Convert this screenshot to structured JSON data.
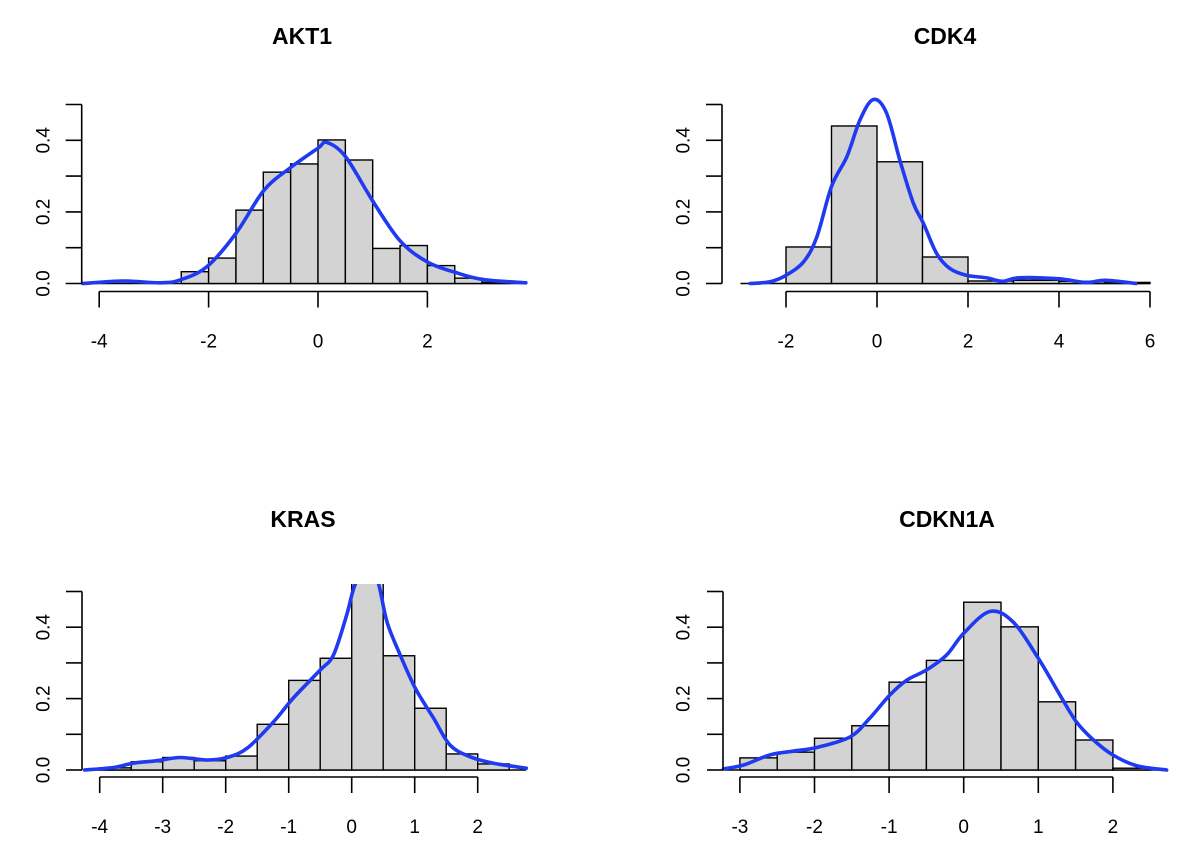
{
  "figure": {
    "layout": "2x2 grid of histograms with kernel density overlays"
  },
  "colors": {
    "bar_fill": "#d3d3d3",
    "bar_border": "#000000",
    "density_line": "#1f3af0",
    "background": "#ffffff"
  },
  "chart_data": [
    {
      "type": "bar",
      "id": "akt1",
      "title": "AKT1",
      "xlabel": "",
      "ylabel": "",
      "ylim": [
        0,
        0.5
      ],
      "x_ticks": [
        -4,
        -2,
        0,
        2
      ],
      "x_tick_labels": [
        "-4",
        "-2",
        "0",
        "2"
      ],
      "y_ticks": [
        0,
        0.1,
        0.2,
        0.3,
        0.4,
        0.5
      ],
      "y_tick_labels": [
        "0.0",
        "0.2",
        "0.4"
      ],
      "y_labeled_ticks": [
        0,
        0.2,
        0.4
      ],
      "bins": {
        "breaks": [
          -2.5,
          -2,
          -1.5,
          -1,
          -0.5,
          0,
          0.5,
          1,
          1.5,
          2,
          2.5,
          3,
          3.5
        ],
        "density": [
          0.033,
          0.071,
          0.205,
          0.311,
          0.334,
          0.401,
          0.345,
          0.098,
          0.106,
          0.05,
          0.015,
          0.003
        ]
      },
      "density_curve": {
        "x": [
          -4.3,
          -3.56,
          -2.89,
          -2.52,
          -2.03,
          -1.5,
          -0.99,
          -0.5,
          0.0,
          0.16,
          0.5,
          0.99,
          1.49,
          1.99,
          2.51,
          3.02,
          3.8
        ],
        "y": [
          0.0,
          0.007,
          0.002,
          0.01,
          0.047,
          0.14,
          0.26,
          0.324,
          0.378,
          0.394,
          0.355,
          0.233,
          0.121,
          0.061,
          0.031,
          0.011,
          0.002
        ]
      }
    },
    {
      "type": "bar",
      "id": "cdk4",
      "title": "CDK4",
      "xlabel": "",
      "ylabel": "",
      "ylim": [
        0,
        0.5
      ],
      "x_ticks": [
        -2,
        0,
        2,
        4,
        6
      ],
      "x_tick_labels": [
        "-2",
        "0",
        "2",
        "4",
        "6"
      ],
      "y_ticks": [
        0,
        0.1,
        0.2,
        0.3,
        0.4,
        0.5
      ],
      "y_tick_labels": [
        "0.0",
        "0.2",
        "0.4"
      ],
      "y_labeled_ticks": [
        0,
        0.2,
        0.4
      ],
      "bins": {
        "breaks": [
          -3,
          -2,
          -1,
          0,
          1,
          2,
          3,
          4,
          5,
          6
        ],
        "density": [
          0.0,
          0.102,
          0.44,
          0.34,
          0.074,
          0.007,
          0.009,
          0.006,
          0.003
        ]
      },
      "density_curve": {
        "x": [
          -2.79,
          -2.35,
          -2.0,
          -1.61,
          -1.32,
          -1.0,
          -0.66,
          -0.37,
          -0.08,
          0.21,
          0.51,
          0.8,
          1.02,
          1.31,
          1.6,
          1.96,
          2.4,
          2.76,
          3.12,
          4.0,
          4.59,
          5.03,
          5.69
        ],
        "y": [
          0.0,
          0.005,
          0.023,
          0.061,
          0.131,
          0.271,
          0.355,
          0.458,
          0.514,
          0.476,
          0.341,
          0.224,
          0.168,
          0.084,
          0.042,
          0.023,
          0.016,
          0.006,
          0.016,
          0.013,
          0.003,
          0.009,
          0.0
        ]
      }
    },
    {
      "type": "bar",
      "id": "kras",
      "title": "KRAS",
      "xlabel": "",
      "ylabel": "",
      "ylim": [
        0,
        0.5
      ],
      "x_ticks": [
        -4,
        -3,
        -2,
        -1,
        0,
        1,
        2
      ],
      "x_tick_labels": [
        "-4",
        "-3",
        "-2",
        "-1",
        "0",
        "1",
        "2"
      ],
      "y_ticks": [
        0,
        0.1,
        0.2,
        0.3,
        0.4,
        0.5
      ],
      "y_tick_labels": [
        "0.0",
        "0.2",
        "0.4"
      ],
      "y_labeled_ticks": [
        0,
        0.2,
        0.4
      ],
      "annotations": [
        "Tallest bar [0, 0.5] and density peak exceed the y-axis limit and are clipped at the top of the plot area"
      ],
      "bins": {
        "breaks": [
          -4,
          -3.5,
          -3,
          -2.5,
          -2,
          -1.5,
          -1,
          -0.5,
          0,
          0.5,
          1,
          1.5,
          2,
          2.5
        ],
        "density": [
          0.006,
          0.023,
          0.035,
          0.026,
          0.039,
          0.128,
          0.251,
          0.313,
          0.56,
          0.32,
          0.173,
          0.045,
          0.017
        ]
      },
      "density_curve": {
        "x": [
          -4.24,
          -3.78,
          -3.47,
          -3.09,
          -2.72,
          -2.3,
          -1.98,
          -1.66,
          -1.24,
          -0.93,
          -0.5,
          -0.29,
          -0.08,
          0.05,
          0.25,
          0.42,
          0.56,
          0.77,
          1.01,
          1.3,
          1.56,
          1.88,
          2.25,
          2.77
        ],
        "y": [
          0.0,
          0.007,
          0.019,
          0.026,
          0.035,
          0.028,
          0.035,
          0.061,
          0.135,
          0.201,
          0.28,
          0.322,
          0.434,
          0.518,
          0.58,
          0.525,
          0.415,
          0.322,
          0.229,
          0.145,
          0.07,
          0.037,
          0.019,
          0.005
        ]
      }
    },
    {
      "type": "bar",
      "id": "cdkn1a",
      "title": "CDKN1A",
      "xlabel": "",
      "ylabel": "",
      "ylim": [
        0,
        0.5
      ],
      "x_ticks": [
        -3,
        -2,
        -1,
        0,
        1,
        2
      ],
      "x_tick_labels": [
        "-3",
        "-2",
        "-1",
        "0",
        "1",
        "2"
      ],
      "y_ticks": [
        0,
        0.1,
        0.2,
        0.3,
        0.4,
        0.5
      ],
      "y_tick_labels": [
        "0.0",
        "0.2",
        "0.4"
      ],
      "y_labeled_ticks": [
        0,
        0.2,
        0.4
      ],
      "bins": {
        "breaks": [
          -3,
          -2.5,
          -2,
          -1.5,
          -1,
          -0.5,
          0,
          0.5,
          1,
          1.5,
          2,
          2.5
        ],
        "density": [
          0.034,
          0.05,
          0.089,
          0.124,
          0.246,
          0.307,
          0.47,
          0.401,
          0.191,
          0.084,
          0.005
        ]
      },
      "density_curve": {
        "x": [
          -3.22,
          -2.95,
          -2.6,
          -2.28,
          -1.97,
          -1.52,
          -1.26,
          -0.99,
          -0.76,
          -0.5,
          -0.23,
          0.0,
          0.35,
          0.66,
          1.0,
          1.29,
          1.51,
          1.74,
          2.0,
          2.32,
          2.72
        ],
        "y": [
          0.003,
          0.014,
          0.042,
          0.053,
          0.063,
          0.093,
          0.145,
          0.21,
          0.252,
          0.28,
          0.322,
          0.383,
          0.444,
          0.415,
          0.313,
          0.21,
          0.135,
          0.084,
          0.042,
          0.012,
          0.0
        ]
      }
    }
  ]
}
